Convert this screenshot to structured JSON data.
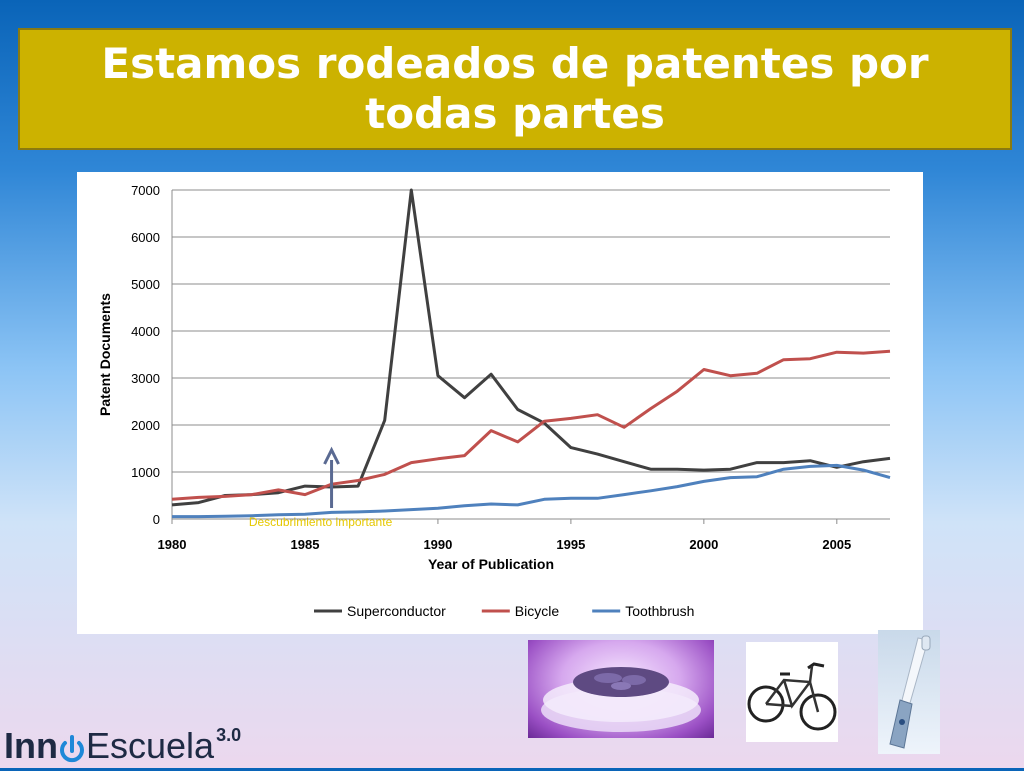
{
  "slide": {
    "title": "Estamos rodeados de patentes por todas partes"
  },
  "logo": {
    "inn": "Inn",
    "escuela": "Escuela",
    "version": "3.0",
    "power_icon": "power-icon"
  },
  "images": [
    {
      "name": "superconductor-levitation-photo"
    },
    {
      "name": "bicycle-photo"
    },
    {
      "name": "electric-toothbrush-photo"
    }
  ],
  "chart_data": {
    "type": "line",
    "title": "",
    "xlabel": "Year of Publication",
    "ylabel": "Patent Documents",
    "xlim": [
      1980,
      2007
    ],
    "ylim": [
      0,
      7000
    ],
    "xticks": [
      1980,
      1985,
      1990,
      1995,
      2000,
      2005
    ],
    "yticks": [
      0,
      1000,
      2000,
      3000,
      4000,
      5000,
      6000,
      7000
    ],
    "grid": true,
    "legend": "bottom",
    "x": [
      1980,
      1981,
      1982,
      1983,
      1984,
      1985,
      1986,
      1987,
      1988,
      1989,
      1990,
      1991,
      1992,
      1993,
      1994,
      1995,
      1996,
      1997,
      1998,
      1999,
      2000,
      2001,
      2002,
      2003,
      2004,
      2005,
      2006,
      2007
    ],
    "series": [
      {
        "name": "Superconductor",
        "color": "#404040",
        "values": [
          300,
          350,
          500,
          520,
          560,
          700,
          680,
          700,
          2100,
          7000,
          3050,
          2580,
          3080,
          2330,
          2040,
          1520,
          1380,
          1220,
          1060,
          1060,
          1040,
          1060,
          1200,
          1200,
          1240,
          1100,
          1220,
          1290
        ]
      },
      {
        "name": "Bicycle",
        "color": "#c0504d",
        "values": [
          420,
          460,
          480,
          520,
          620,
          520,
          740,
          820,
          950,
          1200,
          1280,
          1350,
          1880,
          1640,
          2080,
          2140,
          2220,
          1950,
          2350,
          2720,
          3180,
          3050,
          3100,
          3390,
          3410,
          3550,
          3530,
          3570
        ]
      },
      {
        "name": "Toothbrush",
        "color": "#4f81bd",
        "values": [
          50,
          50,
          60,
          70,
          90,
          100,
          140,
          150,
          170,
          200,
          230,
          280,
          320,
          300,
          420,
          440,
          440,
          520,
          600,
          690,
          800,
          880,
          900,
          1060,
          1120,
          1140,
          1040,
          880
        ]
      }
    ],
    "annotation": {
      "text": "Descubrimiento importante",
      "x": 1986,
      "color": "#e6c800"
    }
  }
}
